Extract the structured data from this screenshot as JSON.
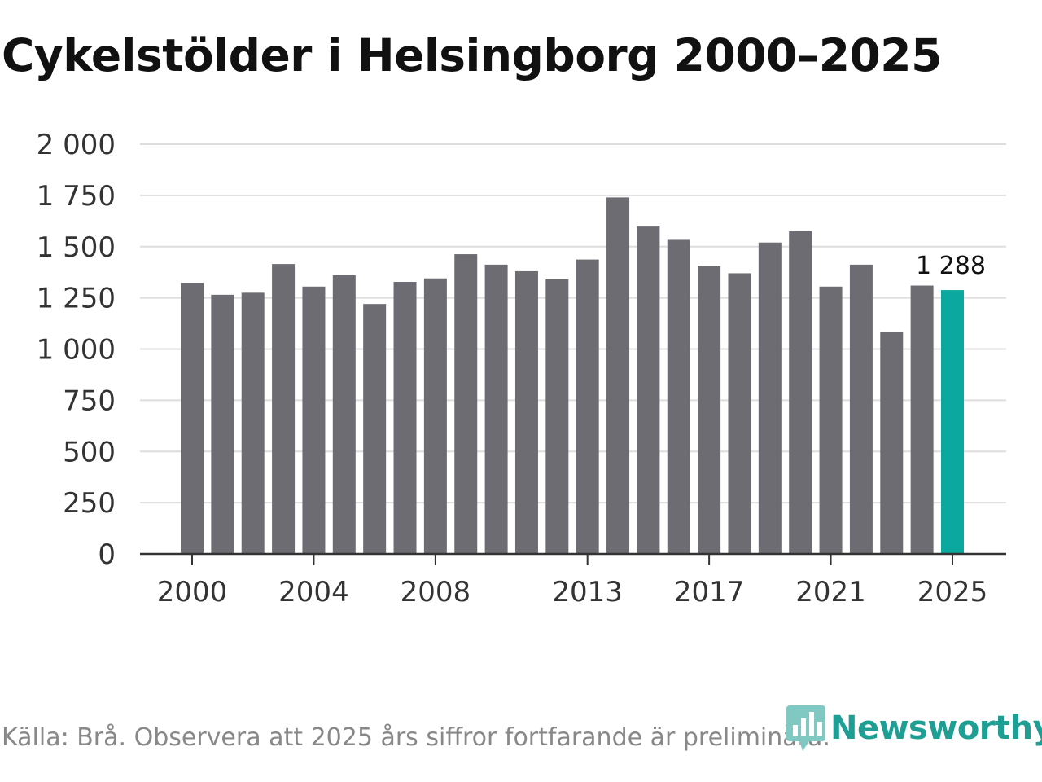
{
  "title": "Cykelstölder i Helsingborg 2000–2025",
  "source": "Källa: Brå. Observera att 2025 års siffror fortfarande är preliminära.",
  "brand": "Newsworthy",
  "chart_data": {
    "type": "bar",
    "title": "Cykelstölder i Helsingborg 2000–2025",
    "xlabel": "",
    "ylabel": "",
    "grid": true,
    "categories": [
      "2000",
      "2001",
      "2002",
      "2003",
      "2004",
      "2005",
      "2006",
      "2007",
      "2008",
      "2009",
      "2010",
      "2011",
      "2012",
      "2013",
      "2014",
      "2015",
      "2016",
      "2017",
      "2018",
      "2019",
      "2020",
      "2021",
      "2022",
      "2023",
      "2024",
      "2025"
    ],
    "values": [
      1322,
      1265,
      1275,
      1415,
      1305,
      1360,
      1220,
      1328,
      1345,
      1463,
      1412,
      1380,
      1340,
      1437,
      1740,
      1598,
      1533,
      1405,
      1370,
      1520,
      1575,
      1305,
      1412,
      1082,
      1310,
      1288
    ],
    "ylim": [
      0,
      2000
    ],
    "yticks": [
      0,
      250,
      500,
      750,
      1000,
      1250,
      1500,
      1750,
      2000
    ],
    "ytick_labels": [
      "0",
      "250",
      "500",
      "750",
      "1 000",
      "1 250",
      "1 500",
      "1 750",
      "2 000"
    ],
    "xtick_labels": [
      "2000",
      "2004",
      "2008",
      "2013",
      "2017",
      "2021",
      "2025"
    ],
    "highlight": {
      "category": "2025",
      "label": "1 288"
    },
    "colors": {
      "bar": "#6d6c73",
      "highlight": "#0aa89e",
      "grid": "#dddddd",
      "axis": "#333333"
    }
  }
}
